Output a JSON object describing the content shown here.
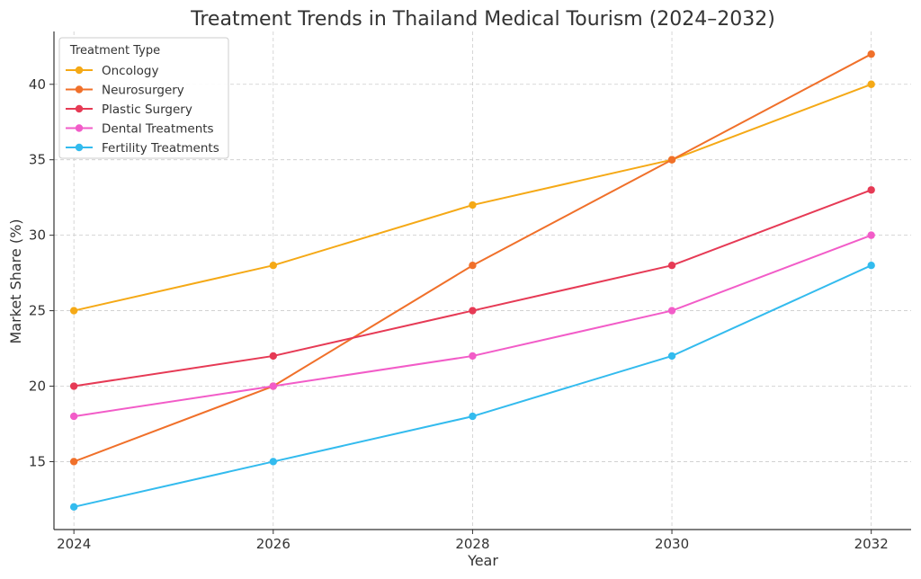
{
  "chart_data": {
    "type": "line",
    "title": "Treatment Trends in Thailand Medical Tourism (2024–2032)",
    "xlabel": "Year",
    "ylabel": "Market Share (%)",
    "x": [
      2024,
      2026,
      2028,
      2030,
      2032
    ],
    "x_tick_labels": [
      "2024",
      "2026",
      "2028",
      "2030",
      "2032"
    ],
    "y_ticks": [
      15,
      20,
      25,
      30,
      35,
      40
    ],
    "y_tick_labels": [
      "15",
      "20",
      "25",
      "30",
      "35",
      "40"
    ],
    "xlim": [
      2023.8,
      2032.4
    ],
    "ylim": [
      10.5,
      43.5
    ],
    "grid": true,
    "legend": {
      "title": "Treatment Type",
      "placement": "top-left"
    },
    "series": [
      {
        "name": "Oncology",
        "color": "#f5a916",
        "values": [
          25,
          28,
          32,
          35,
          40
        ]
      },
      {
        "name": "Neurosurgery",
        "color": "#f0702a",
        "values": [
          15,
          20,
          28,
          35,
          42
        ]
      },
      {
        "name": "Plastic Surgery",
        "color": "#e63a55",
        "values": [
          20,
          22,
          25,
          28,
          33
        ]
      },
      {
        "name": "Dental Treatments",
        "color": "#f25cc8",
        "values": [
          18,
          20,
          22,
          25,
          30
        ]
      },
      {
        "name": "Fertility Treatments",
        "color": "#33bbee",
        "values": [
          12,
          15,
          18,
          22,
          28
        ]
      }
    ]
  }
}
